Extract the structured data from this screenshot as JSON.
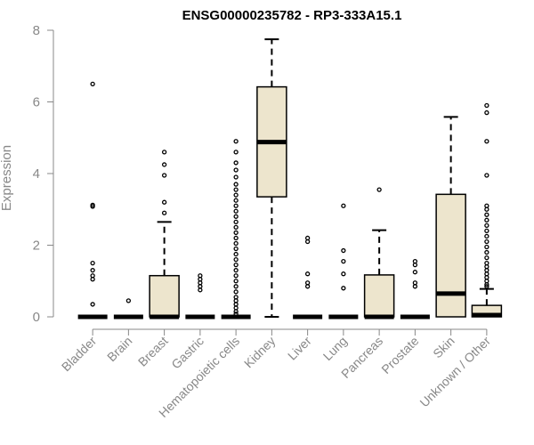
{
  "chart_data": {
    "type": "boxplot",
    "title": "ENSG00000235782 - RP3-333A15.1",
    "ylabel": "Expression",
    "ylim": [
      0,
      8
    ],
    "yticks": [
      0,
      2,
      4,
      6,
      8
    ],
    "colors": {
      "box_fill": "#ede5cd",
      "stroke": "#000000",
      "axis_text": "#888888"
    },
    "categories": [
      "Bladder",
      "Brain",
      "Breast",
      "Gastric",
      "Hematopoietic cells",
      "Kidney",
      "Liver",
      "Lung",
      "Pancreas",
      "Prostate",
      "Skin",
      "Unknown / Other"
    ],
    "boxes": [
      {
        "q1": 0,
        "median": 0,
        "q3": 0,
        "whisker_low": 0,
        "whisker_high": 0,
        "outliers": [
          6.5,
          3.12,
          3.08,
          1.5,
          1.3,
          1.15,
          1.05,
          0.35
        ]
      },
      {
        "q1": 0,
        "median": 0,
        "q3": 0,
        "whisker_low": 0,
        "whisker_high": 0,
        "outliers": [
          0.45
        ]
      },
      {
        "q1": 0,
        "median": 0,
        "q3": 1.15,
        "whisker_low": 0,
        "whisker_high": 2.65,
        "outliers": [
          4.6,
          4.25,
          3.95,
          3.2,
          2.9
        ]
      },
      {
        "q1": 0,
        "median": 0,
        "q3": 0,
        "whisker_low": 0,
        "whisker_high": 0,
        "outliers": [
          1.15,
          1.05,
          0.95,
          0.85,
          0.75
        ]
      },
      {
        "q1": 0,
        "median": 0,
        "q3": 0,
        "whisker_low": 0,
        "whisker_high": 0,
        "outliers": [
          4.9,
          4.6,
          4.3,
          4.1,
          3.9,
          3.7,
          3.55,
          3.4,
          3.25,
          3.1,
          2.95,
          2.8,
          2.65,
          2.5,
          2.35,
          2.2,
          2.05,
          1.9,
          1.75,
          1.6,
          1.45,
          1.3,
          1.15,
          1.0,
          0.85,
          0.7,
          0.55,
          0.45,
          0.35,
          0.25,
          0.15,
          0.08
        ]
      },
      {
        "q1": 3.35,
        "median": 4.88,
        "q3": 6.42,
        "whisker_low": 0,
        "whisker_high": 7.75,
        "outliers": []
      },
      {
        "q1": 0,
        "median": 0,
        "q3": 0,
        "whisker_low": 0,
        "whisker_high": 0,
        "outliers": [
          2.2,
          2.1,
          1.2,
          0.95,
          0.85
        ]
      },
      {
        "q1": 0,
        "median": 0,
        "q3": 0,
        "whisker_low": 0,
        "whisker_high": 0,
        "outliers": [
          3.1,
          1.85,
          1.55,
          1.2,
          0.8
        ]
      },
      {
        "q1": 0,
        "median": 0,
        "q3": 1.17,
        "whisker_low": 0,
        "whisker_high": 2.42,
        "outliers": [
          3.55
        ]
      },
      {
        "q1": 0,
        "median": 0,
        "q3": 0,
        "whisker_low": 0,
        "whisker_high": 0,
        "outliers": [
          1.55,
          1.45,
          1.25,
          0.95,
          0.85
        ]
      },
      {
        "q1": 0,
        "median": 0.65,
        "q3": 3.42,
        "whisker_low": 0,
        "whisker_high": 5.58,
        "outliers": []
      },
      {
        "q1": 0,
        "median": 0.05,
        "q3": 0.32,
        "whisker_low": 0,
        "whisker_high": 0.78,
        "outliers": [
          5.9,
          5.7,
          4.9,
          3.95,
          3.1,
          3.0,
          2.85,
          2.7,
          2.55,
          2.4,
          2.25,
          2.1,
          1.95,
          1.8,
          1.65,
          1.5,
          1.4,
          1.3,
          1.2,
          1.1,
          1.0,
          0.9,
          0.85
        ]
      }
    ]
  }
}
